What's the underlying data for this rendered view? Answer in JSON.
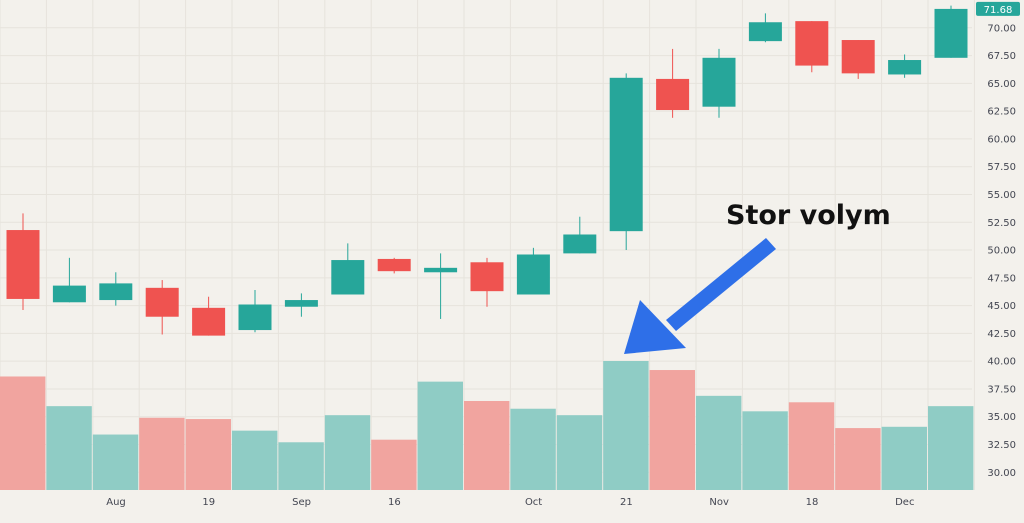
{
  "chart_data": {
    "type": "candlestick",
    "y_axis": {
      "position": "right",
      "range": [
        28.5,
        72.5
      ],
      "ticks": [
        "30.00",
        "32.50",
        "35.00",
        "37.50",
        "40.00",
        "42.50",
        "45.00",
        "47.50",
        "50.00",
        "52.50",
        "55.00",
        "57.50",
        "60.00",
        "62.50",
        "65.00",
        "67.50",
        "70.00"
      ],
      "last_price_label": "71.68"
    },
    "x_axis": {
      "tick_labels": [
        {
          "label": "Aug",
          "index": 2.5
        },
        {
          "label": "19",
          "index": 4.5
        },
        {
          "label": "Sep",
          "index": 6.5
        },
        {
          "label": "16",
          "index": 8.5
        },
        {
          "label": "Oct",
          "index": 11.5
        },
        {
          "label": "21",
          "index": 13.5
        },
        {
          "label": "Nov",
          "index": 15.5
        },
        {
          "label": "18",
          "index": 17.5
        },
        {
          "label": "Dec",
          "index": 19.5
        }
      ]
    },
    "candles": [
      {
        "open": 51.8,
        "high": 53.3,
        "low": 44.6,
        "close": 45.6
      },
      {
        "open": 45.3,
        "high": 49.3,
        "low": 45.3,
        "close": 46.8
      },
      {
        "open": 45.5,
        "high": 48.0,
        "low": 45.0,
        "close": 47.0
      },
      {
        "open": 46.6,
        "high": 47.3,
        "low": 42.4,
        "close": 44.0
      },
      {
        "open": 44.8,
        "high": 45.8,
        "low": 42.3,
        "close": 42.3
      },
      {
        "open": 42.8,
        "high": 46.4,
        "low": 42.6,
        "close": 45.1
      },
      {
        "open": 44.9,
        "high": 46.1,
        "low": 44.0,
        "close": 45.5
      },
      {
        "open": 46.0,
        "high": 50.6,
        "low": 46.0,
        "close": 49.1
      },
      {
        "open": 49.2,
        "high": 49.3,
        "low": 47.9,
        "close": 48.1
      },
      {
        "open": 48.0,
        "high": 49.7,
        "low": 43.8,
        "close": 48.4
      },
      {
        "open": 48.9,
        "high": 49.3,
        "low": 44.9,
        "close": 46.3
      },
      {
        "open": 46.0,
        "high": 50.2,
        "low": 46.0,
        "close": 49.6
      },
      {
        "open": 49.7,
        "high": 53.0,
        "low": 49.7,
        "close": 51.4
      },
      {
        "open": 51.7,
        "high": 65.9,
        "low": 50.0,
        "close": 65.5
      },
      {
        "open": 65.4,
        "high": 68.1,
        "low": 61.9,
        "close": 62.6
      },
      {
        "open": 62.9,
        "high": 68.1,
        "low": 61.9,
        "close": 67.3
      },
      {
        "open": 68.8,
        "high": 71.3,
        "low": 68.7,
        "close": 70.5
      },
      {
        "open": 70.6,
        "high": 70.6,
        "low": 66.0,
        "close": 66.6
      },
      {
        "open": 68.9,
        "high": 68.9,
        "low": 65.4,
        "close": 65.9
      },
      {
        "open": 65.8,
        "high": 67.6,
        "low": 65.5,
        "close": 67.1
      },
      {
        "open": 67.3,
        "high": 72.0,
        "low": 67.3,
        "close": 71.7
      }
    ],
    "volume": [
      0.88,
      0.65,
      0.43,
      0.56,
      0.55,
      0.46,
      0.37,
      0.58,
      0.39,
      0.84,
      0.69,
      0.63,
      0.58,
      1.0,
      0.93,
      0.73,
      0.61,
      0.68,
      0.48,
      0.49,
      0.65
    ],
    "annotation": {
      "text": "Stor volym",
      "points_to_index": 13
    },
    "grid": true,
    "legend": "none"
  },
  "colors": {
    "up": "#26a69a",
    "down": "#ef5350",
    "up_volume": "#8fccc5",
    "down_volume": "#f1a49f",
    "arrow": "#2e6fe8",
    "background": "#f3f1ec",
    "grid": "#e6e3dc",
    "last_price_bg": "#26a69a"
  }
}
